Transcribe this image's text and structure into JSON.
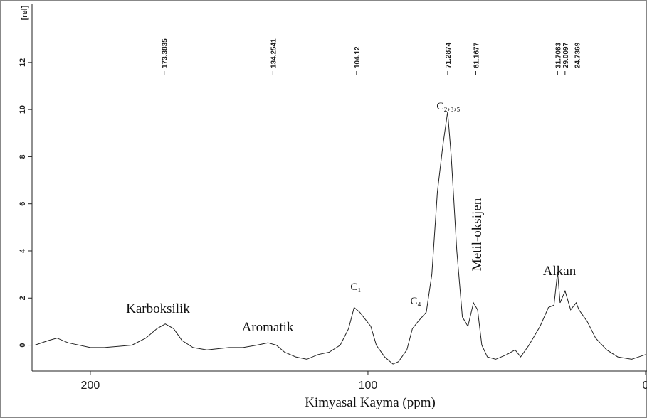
{
  "chart_data": {
    "type": "line",
    "ylabel": "[rel]",
    "xlabel": "Kimyasal Kayma (ppm)",
    "xlim": [
      221,
      0
    ],
    "xticks": [
      200,
      100,
      0
    ],
    "ylim": [
      -1.1,
      14.5
    ],
    "yticks": [
      0,
      2,
      4,
      6,
      8,
      10,
      12
    ],
    "color": "#222222",
    "peaks": [
      173.3835,
      134.2541,
      104.12,
      71.2874,
      61.1677,
      31.7083,
      29.0097,
      24.7369
    ],
    "annotations": [
      "Karboksilik",
      "Aromatik",
      "C₁",
      "C₄",
      "C₂,₃,₅",
      "Metil-oksijen",
      "Alkan"
    ],
    "x": [
      220,
      215,
      212,
      208,
      200,
      195,
      190,
      185,
      180,
      176,
      173,
      170,
      167,
      163,
      158,
      150,
      145,
      140,
      136,
      133,
      130,
      126,
      122,
      118,
      114,
      110,
      107,
      105,
      103,
      101,
      99,
      97,
      94,
      91,
      89,
      86,
      84,
      82,
      79,
      77,
      75,
      73,
      71.3,
      70,
      68,
      66,
      64,
      62,
      60.5,
      59,
      57,
      54,
      50,
      47,
      45,
      42,
      38,
      35,
      33,
      31.7,
      30.8,
      29,
      27,
      25,
      24,
      21,
      18,
      14,
      10,
      5,
      0
    ],
    "values": [
      0.0,
      0.2,
      0.3,
      0.1,
      -0.1,
      -0.1,
      -0.05,
      0.0,
      0.3,
      0.7,
      0.9,
      0.7,
      0.2,
      -0.1,
      -0.2,
      -0.1,
      -0.1,
      0.0,
      0.1,
      0.0,
      -0.3,
      -0.5,
      -0.6,
      -0.4,
      -0.3,
      0.0,
      0.7,
      1.6,
      1.4,
      1.1,
      0.8,
      0.0,
      -0.5,
      -0.8,
      -0.7,
      -0.2,
      0.7,
      1.0,
      1.4,
      3.0,
      6.5,
      8.5,
      9.9,
      8.0,
      4.0,
      1.2,
      0.8,
      1.8,
      1.5,
      0.0,
      -0.5,
      -0.6,
      -0.4,
      -0.2,
      -0.5,
      0.0,
      0.8,
      1.6,
      1.7,
      3.1,
      1.8,
      2.3,
      1.5,
      1.8,
      1.5,
      1.0,
      0.3,
      -0.2,
      -0.5,
      -0.6,
      -0.4
    ]
  }
}
